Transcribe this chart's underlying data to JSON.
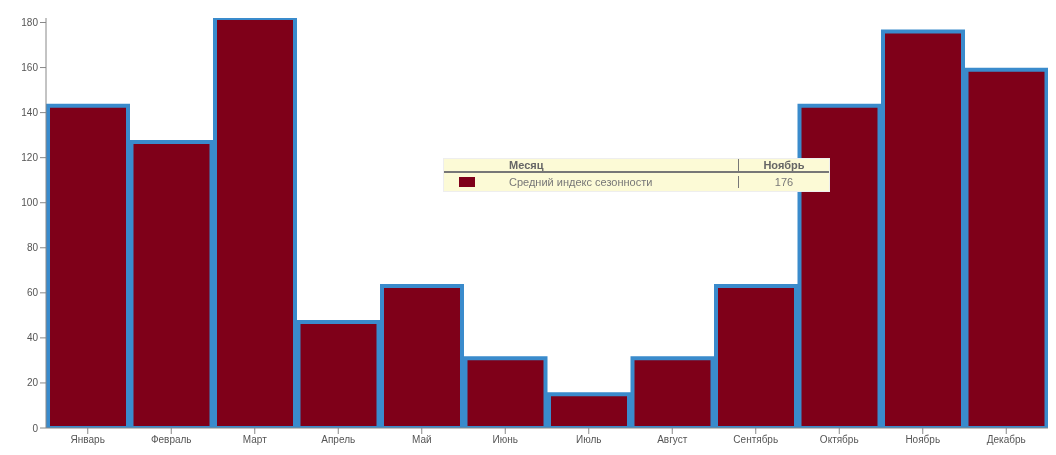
{
  "chart_data": {
    "type": "bar",
    "categories": [
      "Январь",
      "Февраль",
      "Март",
      "Апрель",
      "Май",
      "Июнь",
      "Июль",
      "Август",
      "Сентябрь",
      "Октябрь",
      "Ноябрь",
      "Декабрь"
    ],
    "series": [
      {
        "name": "Средний индекс сезонности",
        "color": "#7f0019",
        "values": [
          143,
          127,
          182,
          47,
          63,
          31,
          15,
          31,
          63,
          143,
          176,
          159
        ]
      }
    ],
    "ylim": [
      0,
      182
    ],
    "yticks": [
      0,
      20,
      40,
      60,
      80,
      100,
      120,
      140,
      160,
      180
    ],
    "legend": "top",
    "annotations": [
      "Месяц",
      "Ноябрь",
      "176"
    ]
  }
}
